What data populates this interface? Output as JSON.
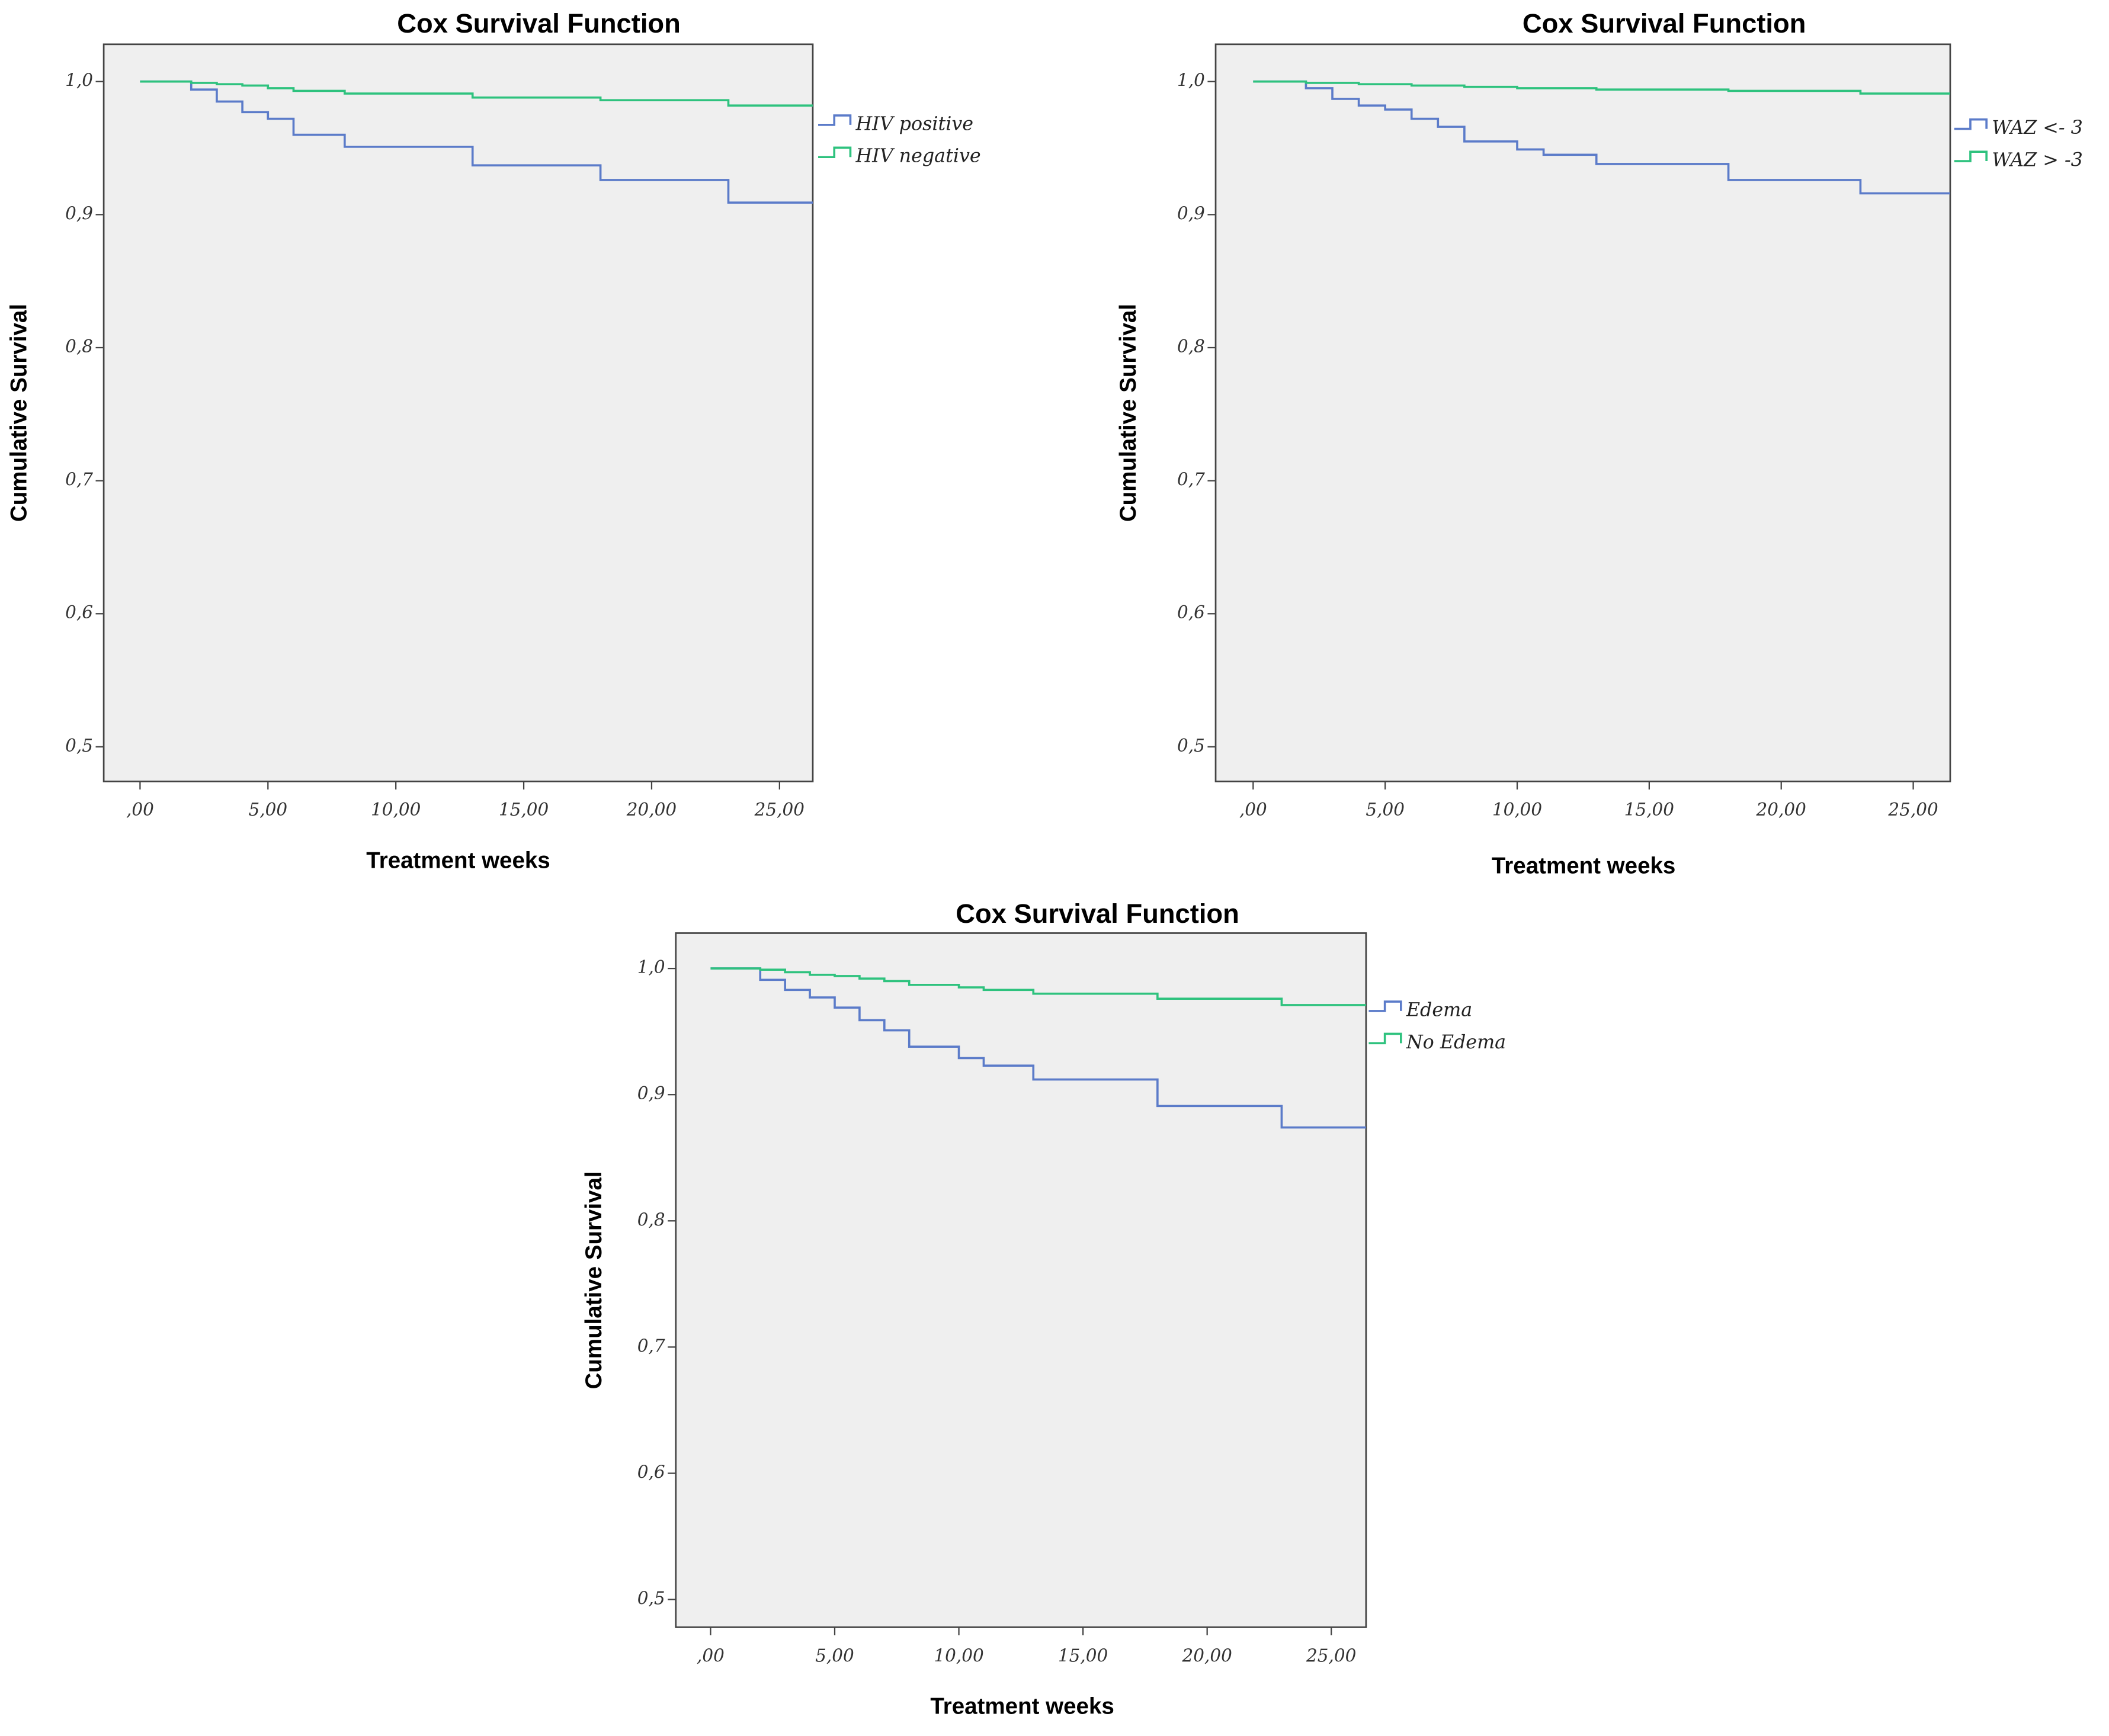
{
  "chart_data": [
    {
      "type": "step",
      "title": "Cox Survival Function",
      "x_label": "Treatment weeks",
      "y_label": "Cumulative Survival",
      "x": [
        0,
        2,
        3,
        4,
        5,
        6,
        8,
        13,
        18,
        23,
        26.3
      ],
      "series": [
        {
          "name": "HIV positive",
          "color": "#5b7bc9",
          "values": [
            1.0,
            0.994,
            0.985,
            0.977,
            0.972,
            0.96,
            0.951,
            0.937,
            0.926,
            0.909,
            0.909
          ]
        },
        {
          "name": "HIV negative",
          "color": "#2ec27e",
          "values": [
            1.0,
            0.999,
            0.998,
            0.997,
            0.995,
            0.993,
            0.991,
            0.988,
            0.986,
            0.982,
            0.982
          ]
        }
      ],
      "xlim": [
        -1.42,
        26.3
      ],
      "ylim": [
        0.474,
        1.028
      ],
      "xticks": [
        {
          "value": 0,
          "label": ",00"
        },
        {
          "value": 5,
          "label": "5,00"
        },
        {
          "value": 10,
          "label": "10,00"
        },
        {
          "value": 15,
          "label": "15,00"
        },
        {
          "value": 20,
          "label": "20,00"
        },
        {
          "value": 25,
          "label": "25,00"
        }
      ],
      "yticks": [
        {
          "value": 0.5,
          "label": "0,5"
        },
        {
          "value": 0.6,
          "label": "0,6"
        },
        {
          "value": 0.7,
          "label": "0,7"
        },
        {
          "value": 0.8,
          "label": "0,8"
        },
        {
          "value": 0.9,
          "label": "0,9"
        },
        {
          "value": 1.0,
          "label": "1,0"
        }
      ],
      "grid": false,
      "background": "#efefef"
    },
    {
      "type": "step",
      "title": "Cox Survival Function",
      "x_label": "Treatment weeks",
      "y_label": "Cumulative Survival",
      "x": [
        0,
        2,
        3,
        4,
        5,
        6,
        7,
        8,
        10,
        11,
        13,
        18,
        23,
        26.4
      ],
      "series": [
        {
          "name": "WAZ <- 3",
          "color": "#5b7bc9",
          "values": [
            1.0,
            0.995,
            0.987,
            0.982,
            0.979,
            0.972,
            0.966,
            0.955,
            0.949,
            0.945,
            0.938,
            0.926,
            0.916,
            0.916
          ]
        },
        {
          "name": "WAZ > -3",
          "color": "#2ec27e",
          "values": [
            1.0,
            0.999,
            0.999,
            0.998,
            0.998,
            0.997,
            0.997,
            0.996,
            0.995,
            0.995,
            0.994,
            0.993,
            0.991,
            0.991
          ]
        }
      ],
      "xlim": [
        -1.42,
        26.4
      ],
      "ylim": [
        0.474,
        1.028
      ],
      "xticks": [
        {
          "value": 0,
          "label": ",00"
        },
        {
          "value": 5,
          "label": "5,00"
        },
        {
          "value": 10,
          "label": "10,00"
        },
        {
          "value": 15,
          "label": "15,00"
        },
        {
          "value": 20,
          "label": "20,00"
        },
        {
          "value": 25,
          "label": "25,00"
        }
      ],
      "yticks": [
        {
          "value": 0.5,
          "label": "0,5"
        },
        {
          "value": 0.6,
          "label": "0,6"
        },
        {
          "value": 0.7,
          "label": "0,7"
        },
        {
          "value": 0.8,
          "label": "0,8"
        },
        {
          "value": 0.9,
          "label": "0,9"
        },
        {
          "value": 1.0,
          "label": "1,0"
        }
      ],
      "grid": false,
      "background": "#efefef"
    },
    {
      "type": "step",
      "title": "Cox Survival Function",
      "x_label": "Treatment weeks",
      "y_label": "Cumulative Survival",
      "x": [
        0,
        2,
        3,
        4,
        5,
        6,
        7,
        8,
        10,
        11,
        13,
        18,
        23,
        26.4
      ],
      "series": [
        {
          "name": "Edema",
          "color": "#5b7bc9",
          "values": [
            1.0,
            0.991,
            0.983,
            0.977,
            0.969,
            0.959,
            0.951,
            0.938,
            0.929,
            0.923,
            0.912,
            0.891,
            0.874,
            0.874
          ]
        },
        {
          "name": "No Edema",
          "color": "#2ec27e",
          "values": [
            1.0,
            0.999,
            0.997,
            0.995,
            0.994,
            0.992,
            0.99,
            0.987,
            0.985,
            0.983,
            0.98,
            0.976,
            0.971,
            0.971
          ]
        }
      ],
      "xlim": [
        -1.4,
        26.4
      ],
      "ylim": [
        0.478,
        1.028
      ],
      "xticks": [
        {
          "value": 0,
          "label": ",00"
        },
        {
          "value": 5,
          "label": "5,00"
        },
        {
          "value": 10,
          "label": "10,00"
        },
        {
          "value": 15,
          "label": "15,00"
        },
        {
          "value": 20,
          "label": "20,00"
        },
        {
          "value": 25,
          "label": "25,00"
        }
      ],
      "yticks": [
        {
          "value": 0.5,
          "label": "0,5"
        },
        {
          "value": 0.6,
          "label": "0,6"
        },
        {
          "value": 0.7,
          "label": "0,7"
        },
        {
          "value": 0.8,
          "label": "0,8"
        },
        {
          "value": 0.9,
          "label": "0,9"
        },
        {
          "value": 1.0,
          "label": "1,0"
        }
      ],
      "grid": false,
      "background": "#efefef"
    }
  ]
}
